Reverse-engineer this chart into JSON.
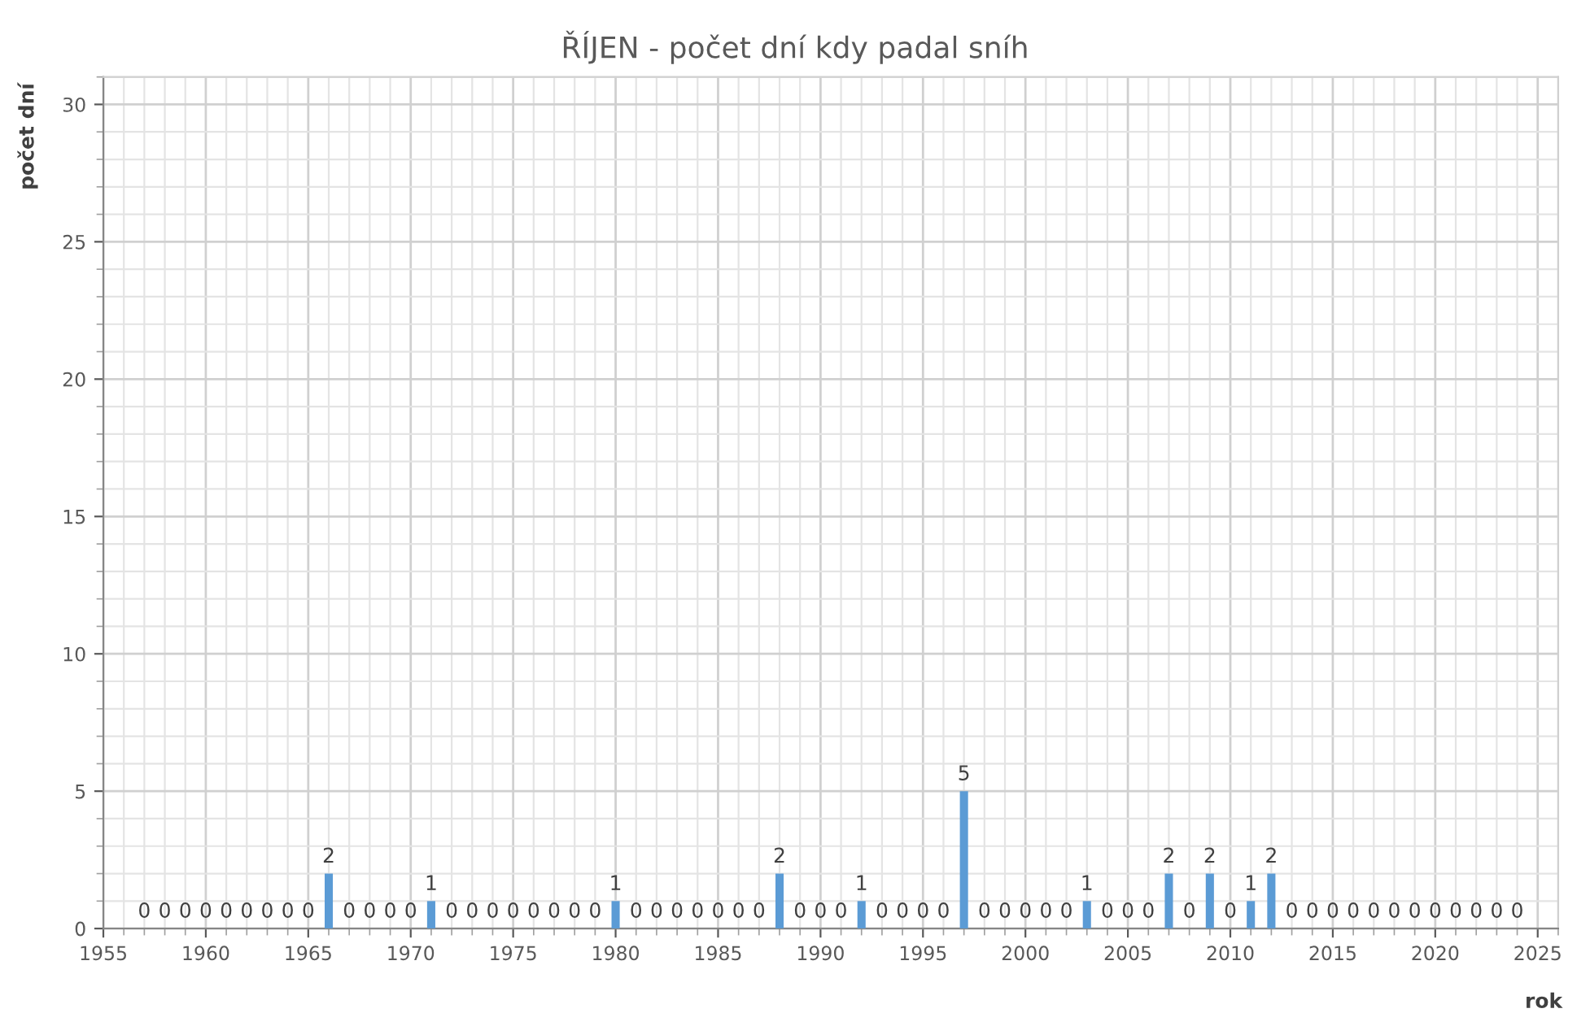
{
  "chart_data": {
    "type": "bar",
    "title": "ŘÍJEN - počet dní kdy padal sníh",
    "xlabel": "rok",
    "ylabel": "počet dní",
    "x": [
      1957,
      1958,
      1959,
      1960,
      1961,
      1962,
      1963,
      1964,
      1965,
      1966,
      1967,
      1968,
      1969,
      1970,
      1971,
      1972,
      1973,
      1974,
      1975,
      1976,
      1977,
      1978,
      1979,
      1980,
      1981,
      1982,
      1983,
      1984,
      1985,
      1986,
      1987,
      1988,
      1989,
      1990,
      1991,
      1992,
      1993,
      1994,
      1995,
      1996,
      1997,
      1998,
      1999,
      2000,
      2001,
      2002,
      2003,
      2004,
      2005,
      2006,
      2007,
      2008,
      2009,
      2010,
      2011,
      2012,
      2013,
      2014,
      2015,
      2016,
      2017,
      2018,
      2019,
      2020,
      2021,
      2022,
      2023,
      2024
    ],
    "values": [
      0,
      0,
      0,
      0,
      0,
      0,
      0,
      0,
      0,
      2,
      0,
      0,
      0,
      0,
      1,
      0,
      0,
      0,
      0,
      0,
      0,
      0,
      0,
      1,
      0,
      0,
      0,
      0,
      0,
      0,
      0,
      2,
      0,
      0,
      0,
      1,
      0,
      0,
      0,
      0,
      5,
      0,
      0,
      0,
      0,
      0,
      1,
      0,
      0,
      0,
      2,
      0,
      2,
      0,
      1,
      2,
      0,
      0,
      0,
      0,
      0,
      0,
      0,
      0,
      0,
      0,
      0,
      0
    ],
    "color": "#5b9bd5",
    "data_labels": true,
    "xlim": [
      1955,
      2026
    ],
    "xticks": [
      1955,
      1960,
      1965,
      1970,
      1975,
      1980,
      1985,
      1990,
      1995,
      2000,
      2005,
      2010,
      2015,
      2020,
      2025
    ],
    "ylim": [
      0,
      31
    ],
    "yticks": [
      0,
      5,
      10,
      15,
      20,
      25,
      30
    ],
    "grid": true
  }
}
